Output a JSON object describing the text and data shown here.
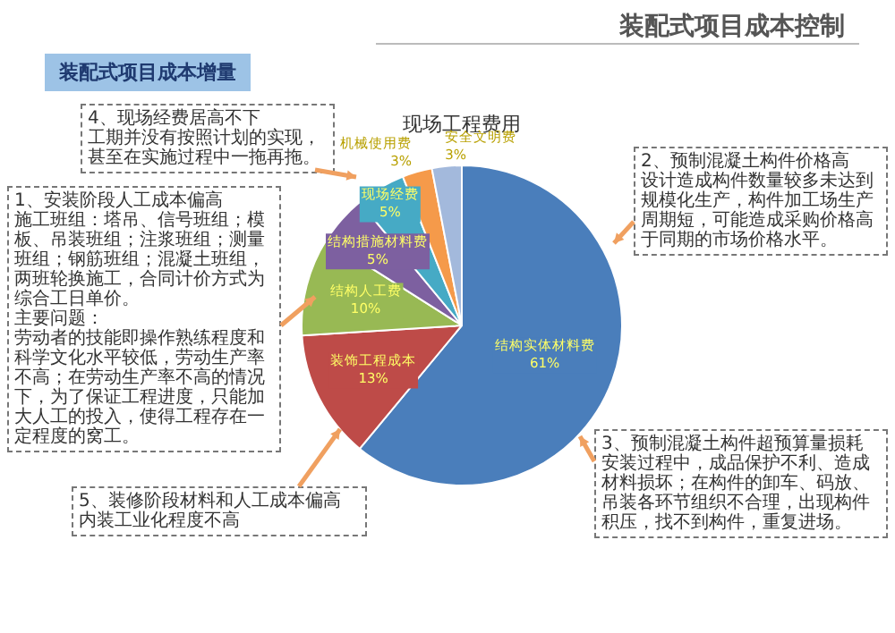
{
  "chart_data": {
    "type": "pie",
    "title": "现场工程费用",
    "subtitle": "装配式项目成本增量",
    "categories": [
      "结构实体材料费",
      "装饰工程成本",
      "结构人工费",
      "结构措施材料费",
      "现场经费",
      "机械使用费",
      "安全文明费"
    ],
    "values": [
      61,
      13,
      10,
      5,
      5,
      3,
      3
    ],
    "value_labels": [
      "61%",
      "13%",
      "10%",
      "5%",
      "5%",
      "3%",
      "3%"
    ],
    "colors": [
      "#4a7ebb",
      "#be4b48",
      "#98b954",
      "#7d60a0",
      "#46aac5",
      "#f59a4a",
      "#a3b9dc"
    ],
    "legend": false,
    "annotations": [
      "装配式项目成本控制",
      "4、现场经费居高不下",
      "工期并没有按照计划的实现，甚至在实施过程中一拖再拖。",
      "1、安装阶段人工成本偏高",
      "施工班组：塔吊、信号班组；模板、吊装班组；注浆班组；测量班组；钢筋班组；混凝土班组，两班轮换施工，合同计价方式为综合工日单价。",
      "主要问题：",
      "劳动者的技能即操作熟练程度和科学文化水平较低，劳动生产率不高；在劳动生产率不高的情况下，为了保证工程进度，只能加大人工的投入，使得工程存在一定程度的窝工。",
      "5、装修阶段材料和人工成本偏高",
      "内装工业化程度不高",
      "2、预制混凝土构件价格高",
      "设计造成构件数量较多未达到规模化生产，构件加工场生产周期短，可能造成采购价格高于同期的市场价格水平。",
      "3、预制混凝土构件超预算量损耗",
      "安装过程中，成品保护不利、造成材料损坏；在构件的卸车、码放、吊装各环节组织不合理，出现构件积压，找不到构件，重复进场。"
    ]
  }
}
